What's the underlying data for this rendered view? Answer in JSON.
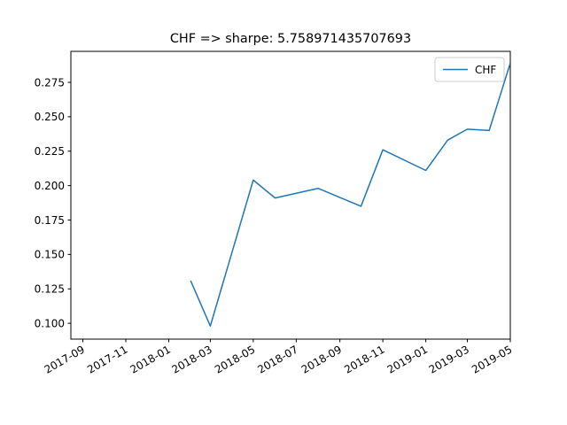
{
  "chart_data": {
    "type": "line",
    "title": "CHF => sharpe: 5.758971435707693",
    "xlabel": "",
    "ylabel": "",
    "x_axis_type": "date",
    "xlim": [
      "2017-08-15",
      "2019-05-01"
    ],
    "ylim": [
      0.0885,
      0.2975
    ],
    "x_ticks": [
      "2017-09",
      "2017-11",
      "2018-01",
      "2018-03",
      "2018-05",
      "2018-07",
      "2018-09",
      "2018-11",
      "2019-01",
      "2019-03",
      "2019-05"
    ],
    "y_ticks": [
      0.1,
      0.125,
      0.15,
      0.175,
      0.2,
      0.225,
      0.25,
      0.275
    ],
    "y_tick_labels": [
      "0.100",
      "0.125",
      "0.150",
      "0.175",
      "0.200",
      "0.225",
      "0.250",
      "0.275"
    ],
    "grid": false,
    "legend": {
      "position": "top-right"
    },
    "series": [
      {
        "name": "CHF",
        "color": "#1f77b4",
        "x": [
          "2018-02-01",
          "2018-03-01",
          "2018-05-01",
          "2018-06-01",
          "2018-08-01",
          "2018-10-01",
          "2018-11-01",
          "2019-01-01",
          "2019-02-01",
          "2019-03-01",
          "2019-04-01",
          "2019-05-01"
        ],
        "y": [
          0.131,
          0.098,
          0.204,
          0.191,
          0.198,
          0.185,
          0.226,
          0.211,
          0.233,
          0.241,
          0.24,
          0.289
        ]
      }
    ]
  }
}
